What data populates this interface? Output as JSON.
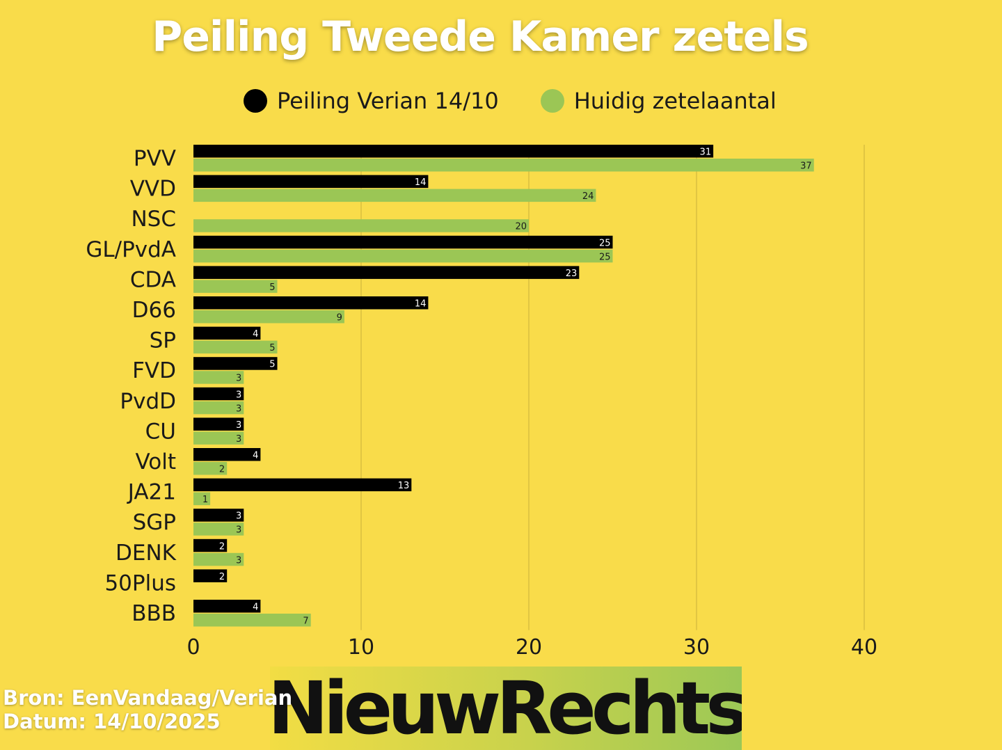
{
  "title": "Peiling Tweede Kamer zetels",
  "legend": [
    {
      "label": "Peiling Verian 14/10",
      "color": "#000000"
    },
    {
      "label": "Huidig zetelaantal",
      "color": "#9bc655"
    }
  ],
  "footer": {
    "source": "Bron: EenVandaag/Verian",
    "date": "Datum: 14/10/2025"
  },
  "logo": {
    "text": "NieuwRechts"
  },
  "chart_data": {
    "type": "bar",
    "orientation": "horizontal",
    "categories": [
      "PVV",
      "VVD",
      "NSC",
      "GL/PvdA",
      "CDA",
      "D66",
      "SP",
      "FVD",
      "PvdD",
      "CU",
      "Volt",
      "JA21",
      "SGP",
      "DENK",
      "50Plus",
      "BBB"
    ],
    "series": [
      {
        "name": "Peiling Verian 14/10",
        "color": "#000000",
        "label_color": "#ffffff",
        "values": [
          31,
          14,
          null,
          25,
          23,
          14,
          4,
          5,
          3,
          3,
          4,
          13,
          3,
          2,
          2,
          4
        ]
      },
      {
        "name": "Huidig zetelaantal",
        "color": "#9bc655",
        "label_color": "#1a1a1a",
        "values": [
          37,
          24,
          20,
          25,
          5,
          9,
          5,
          3,
          3,
          3,
          2,
          1,
          3,
          3,
          null,
          7
        ]
      }
    ],
    "xlim": [
      0,
      40
    ],
    "xticks": [
      0,
      10,
      20,
      30,
      40
    ],
    "grid": true,
    "legend_position": "top"
  }
}
